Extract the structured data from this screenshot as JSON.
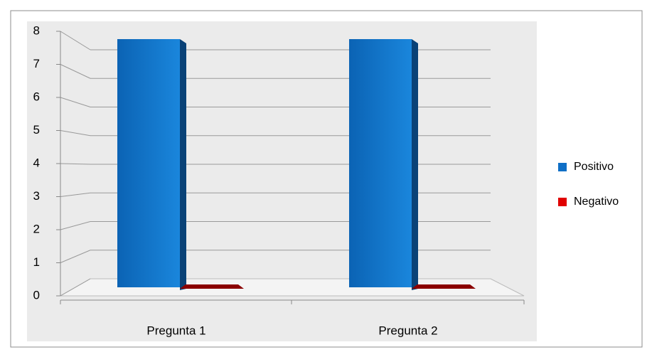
{
  "chart_data": {
    "type": "bar3d",
    "categories": [
      "Pregunta 1",
      "Pregunta 2"
    ],
    "series": [
      {
        "name": "Positivo",
        "color": "#0f6fc6",
        "values": [
          8,
          8
        ]
      },
      {
        "name": "Negativo",
        "color": "#e00000",
        "values": [
          0,
          0
        ]
      }
    ],
    "ylim": [
      0,
      8
    ],
    "yticks": [
      0,
      1,
      2,
      3,
      4,
      5,
      6,
      7,
      8
    ],
    "grid": true,
    "legend": "right"
  }
}
